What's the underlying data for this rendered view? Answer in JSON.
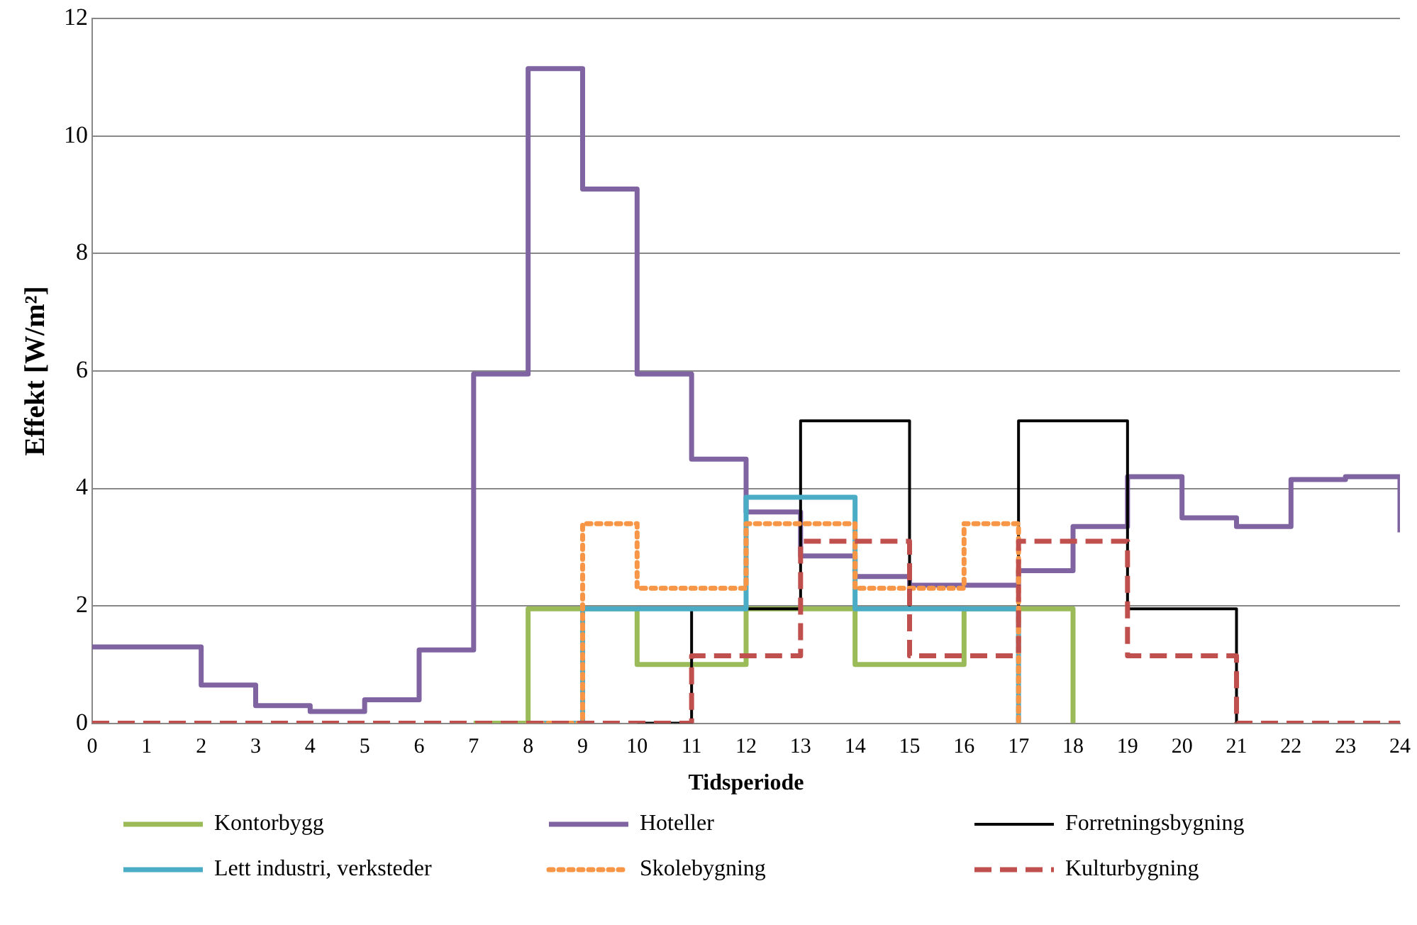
{
  "chart_data": {
    "type": "step",
    "xlabel": "Tidsperiode",
    "ylabel": "Effekt [W/m²]",
    "x": [
      0,
      1,
      2,
      3,
      4,
      5,
      6,
      7,
      8,
      9,
      10,
      11,
      12,
      13,
      14,
      15,
      16,
      17,
      18,
      19,
      20,
      21,
      22,
      23,
      24
    ],
    "xlim": [
      0,
      24
    ],
    "xticks": [
      0,
      1,
      2,
      3,
      4,
      5,
      6,
      7,
      8,
      9,
      10,
      11,
      12,
      13,
      14,
      15,
      16,
      17,
      18,
      19,
      20,
      21,
      22,
      23,
      24
    ],
    "ylim": [
      0,
      12
    ],
    "yticks": [
      0,
      2,
      4,
      6,
      8,
      10,
      12
    ],
    "grid": "y",
    "legend": "bottom",
    "marker": "none",
    "series": [
      {
        "name": "Kontorbygg",
        "color": "#9bbb59",
        "line_style": "solid",
        "values": [
          null,
          null,
          null,
          null,
          null,
          null,
          null,
          0,
          1.95,
          1.95,
          1,
          1,
          1.95,
          1.95,
          1,
          1,
          1.95,
          1.95,
          0,
          null,
          null,
          null,
          null,
          null,
          null
        ]
      },
      {
        "name": "Hoteller",
        "color": "#8064a2",
        "line_style": "solid",
        "values": [
          1.3,
          1.3,
          0.65,
          0.3,
          0.2,
          0.4,
          1.25,
          5.95,
          11.15,
          9.1,
          5.95,
          4.5,
          3.6,
          2.85,
          2.5,
          2.35,
          2.35,
          2.6,
          3.35,
          4.2,
          3.5,
          3.35,
          4.15,
          4.2,
          3.25
        ]
      },
      {
        "name": "Forretningsbygning",
        "color": "#000000",
        "line_style": "solid",
        "values": [
          null,
          null,
          null,
          null,
          null,
          null,
          null,
          null,
          null,
          null,
          0,
          1.95,
          1.95,
          5.15,
          5.15,
          1.95,
          1.95,
          5.15,
          5.15,
          1.95,
          1.95,
          0,
          null,
          null,
          null
        ]
      },
      {
        "name": "Lett industri, verksteder",
        "color": "#4bacc6",
        "line_style": "solid",
        "values": [
          null,
          null,
          null,
          null,
          null,
          null,
          null,
          null,
          0,
          1.95,
          1.95,
          1.95,
          3.85,
          3.85,
          1.95,
          1.95,
          1.95,
          0,
          null,
          null,
          null,
          null,
          null,
          null,
          null
        ]
      },
      {
        "name": "Skolebygning",
        "color": "#f79646",
        "line_style": "dotted",
        "values": [
          null,
          null,
          null,
          null,
          null,
          null,
          null,
          null,
          0,
          3.4,
          2.3,
          2.3,
          3.4,
          3.4,
          2.3,
          2.3,
          3.4,
          0,
          null,
          null,
          null,
          null,
          null,
          null,
          null
        ]
      },
      {
        "name": "Kulturbygning",
        "color": "#c0504d",
        "line_style": "dashed",
        "values": [
          0,
          0,
          0,
          0,
          0,
          0,
          0,
          0,
          0,
          0,
          0,
          1.15,
          1.15,
          3.1,
          3.1,
          1.15,
          1.15,
          3.1,
          3.1,
          1.15,
          1.15,
          0,
          0,
          0,
          0
        ]
      }
    ]
  }
}
